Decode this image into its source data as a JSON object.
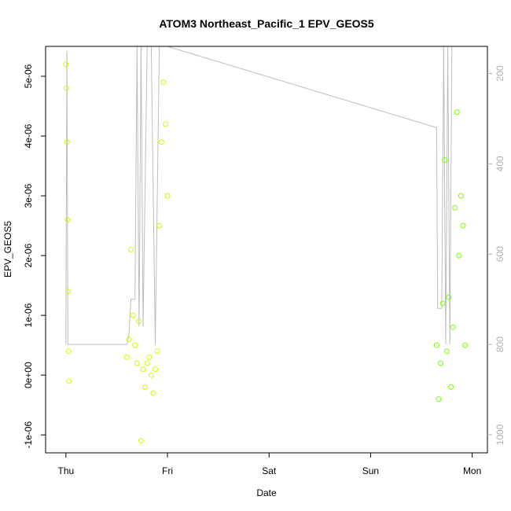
{
  "chart_data": {
    "type": "scatter",
    "title": "ATOM3 Northeast_Pacific_1 EPV_GEOS5",
    "xlabel": "Date",
    "ylabel": "EPV_GEOS5",
    "x_tick_labels": [
      "Thu",
      "Fri",
      "Sat",
      "Sun",
      "Mon"
    ],
    "x_tick_values": [
      0,
      1,
      2,
      3,
      4
    ],
    "xlim": [
      -0.2,
      4.15
    ],
    "ylim": [
      -1.3e-06,
      5.5e-06
    ],
    "y_ticks": [
      -1e-06,
      0,
      1e-06,
      2e-06,
      3e-06,
      4e-06,
      5e-06
    ],
    "y_tick_labels": [
      "-1e-06",
      "0e+00",
      "1e-06",
      "2e-06",
      "3e-06",
      "4e-06",
      "5e-06"
    ],
    "right_axis": {
      "label": "",
      "lim": [
        1040,
        140
      ],
      "ticks": [
        200,
        400,
        600,
        800,
        1000
      ],
      "color": "#b0b0b0"
    },
    "marker": "open-circle",
    "colors": {
      "early": "#ccff00",
      "late": "#77ff00",
      "pressure_line": "#bdbdbd"
    },
    "series": [
      {
        "color": "#ccff00",
        "segments": [
          {
            "x": [
              0.0,
              0.005,
              0.01,
              0.015,
              0.02,
              0.025,
              0.03
            ],
            "y": [
              5.2e-06,
              4.8e-06,
              3.9e-06,
              2.6e-06,
              1.4e-06,
              4e-07,
              -1e-07
            ]
          },
          {
            "x": [
              0.6,
              0.62,
              0.64,
              0.66,
              0.68,
              0.7,
              0.72,
              0.74,
              0.76,
              0.78,
              0.8,
              0.82,
              0.84,
              0.86,
              0.88,
              0.9,
              0.92,
              0.94,
              0.96,
              0.98,
              1.0
            ],
            "y": [
              3e-07,
              6e-07,
              2.1e-06,
              1e-06,
              5e-07,
              2e-07,
              9e-07,
              -1.1e-06,
              1e-07,
              -2e-07,
              2e-07,
              3e-07,
              0.0,
              -3e-07,
              1e-07,
              4e-07,
              2.5e-06,
              3.9e-06,
              4.9e-06,
              4.2e-06,
              3e-06
            ]
          }
        ]
      },
      {
        "color": "#77ff00",
        "segments": [
          {
            "x": [
              3.65,
              3.67,
              3.69,
              3.71,
              3.73,
              3.75,
              3.77,
              3.79,
              3.81,
              3.83,
              3.85,
              3.87,
              3.89,
              3.91,
              3.93
            ],
            "y": [
              5e-07,
              -4e-07,
              2e-07,
              1.2e-06,
              3.6e-06,
              4e-07,
              1.3e-06,
              -2e-07,
              8e-07,
              2.8e-06,
              4.4e-06,
              2e-06,
              3e-06,
              2.5e-06,
              5e-07
            ]
          }
        ]
      }
    ],
    "pressure_line": {
      "x": [
        0.0,
        0.01,
        0.02,
        0.6,
        0.62,
        0.64,
        0.68,
        0.7,
        0.72,
        0.74,
        0.76,
        0.8,
        0.84,
        0.88,
        0.92,
        0.96,
        1.0,
        3.65,
        3.66,
        3.7,
        3.72,
        3.74,
        3.76,
        3.78,
        3.8,
        3.84,
        3.88,
        3.92
      ],
      "y": [
        800,
        150,
        800,
        800,
        780,
        700,
        700,
        140,
        760,
        140,
        760,
        140,
        140,
        800,
        140,
        140,
        140,
        320,
        720,
        720,
        140,
        800,
        140,
        800,
        140,
        140,
        140,
        140
      ]
    }
  }
}
